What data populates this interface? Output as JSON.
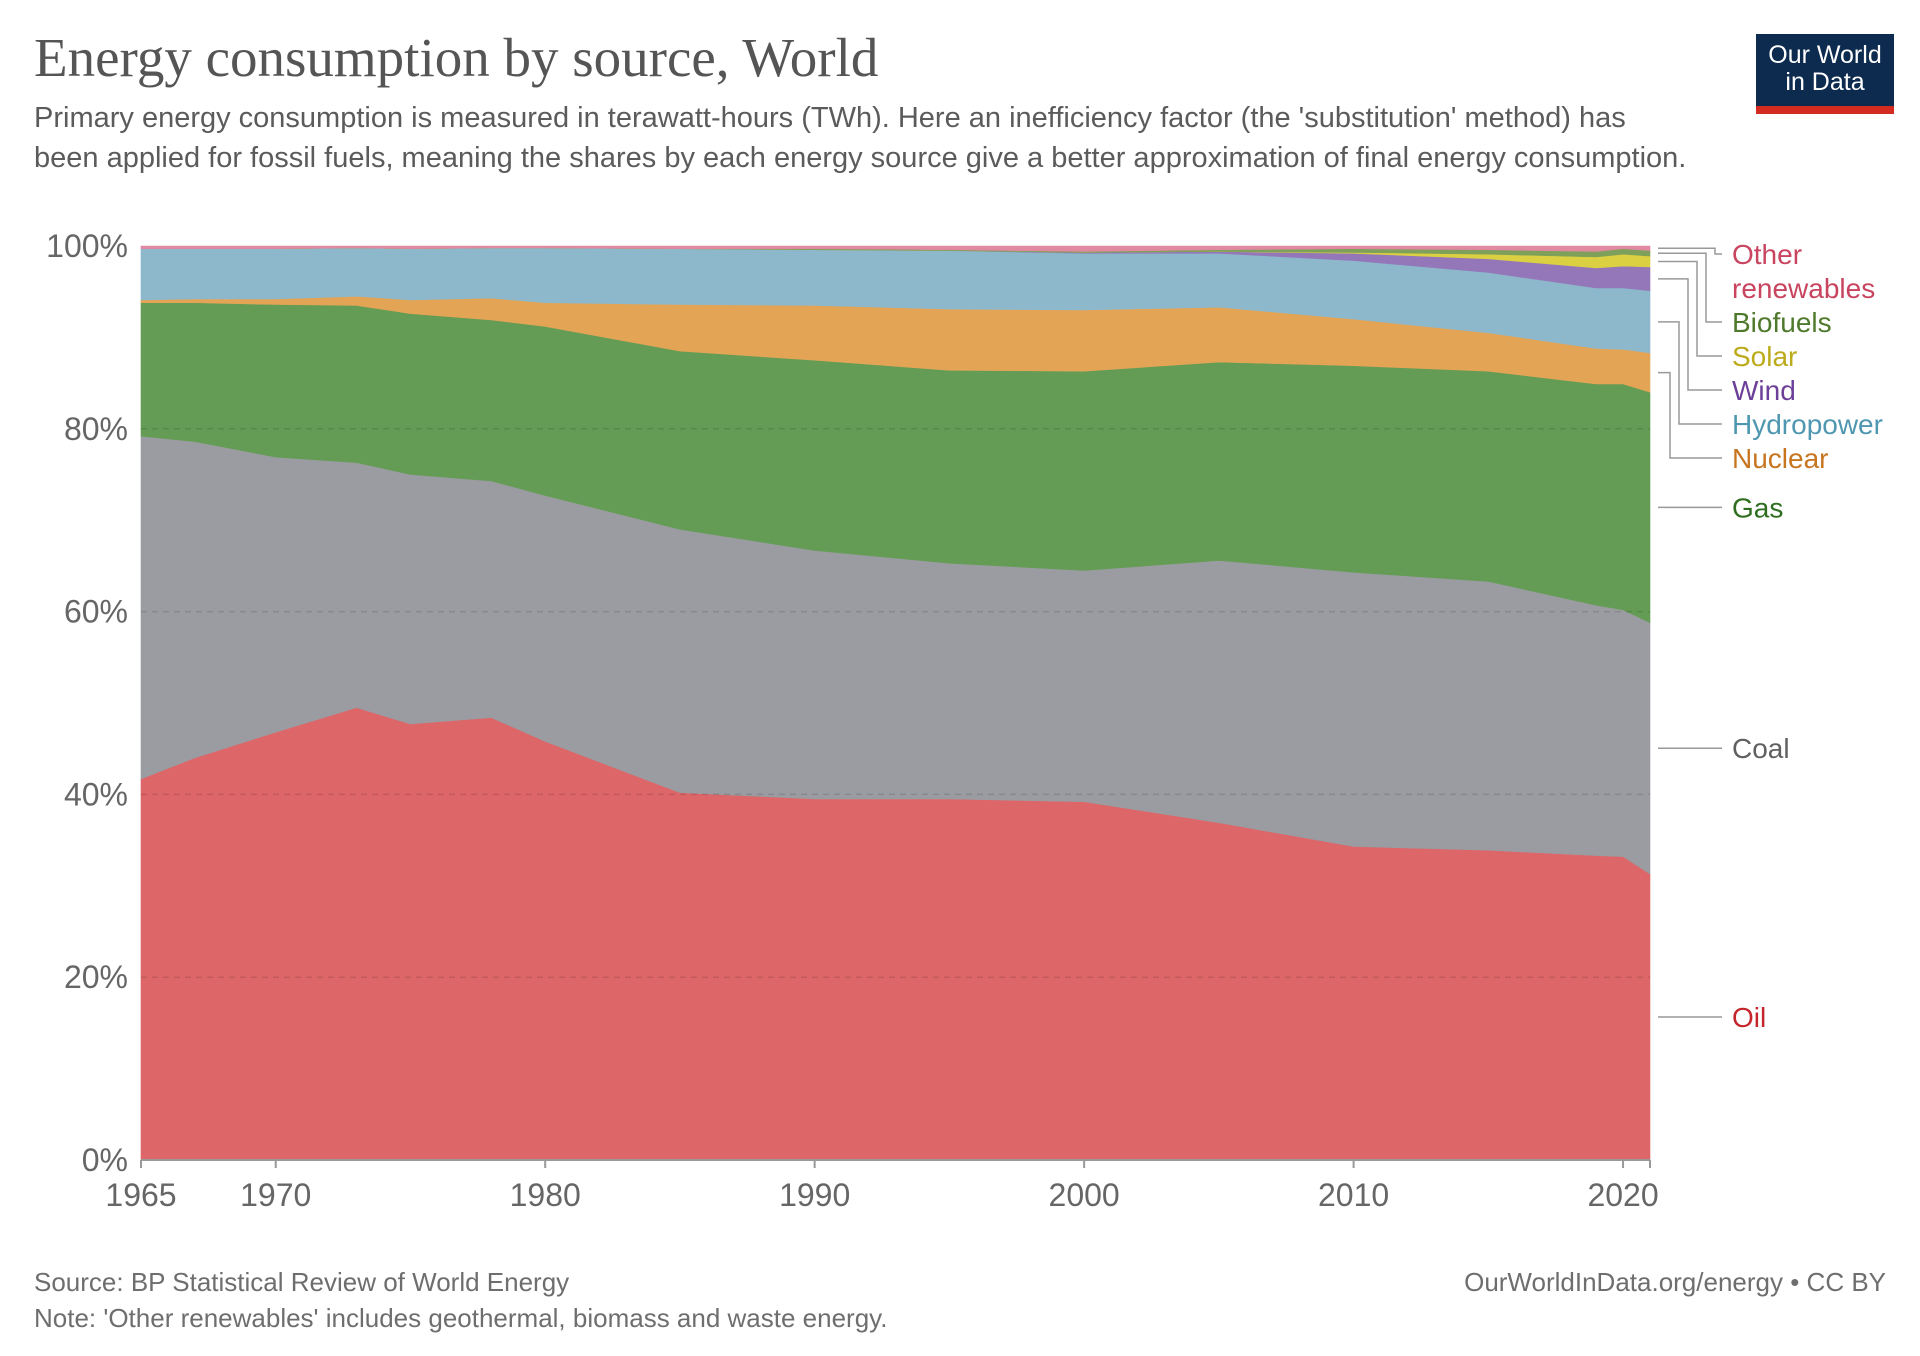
{
  "header": {
    "title": "Energy consumption by source, World",
    "subtitle": "Primary energy consumption is measured in terawatt-hours (TWh). Here an inefficiency factor (the 'substitution' method) has been applied for fossil fuels, meaning the shares by each energy source give a better approximation of final energy consumption.",
    "logo_line1": "Our World",
    "logo_line2": "in Data"
  },
  "footer": {
    "source": "Source: BP Statistical Review of World Energy",
    "note": "Note: 'Other renewables' includes geothermal, biomass and waste energy.",
    "credit": "OurWorldInData.org/energy • CC BY"
  },
  "colors": {
    "Oil": "#dd6669",
    "Coal": "#9a9ca1",
    "Gas": "#649c55",
    "Nuclear": "#e3a456",
    "Hydropower": "#8db7cb",
    "Wind": "#9477b9",
    "Solar": "#dbd041",
    "Biofuels": "#7ea05a",
    "Other renewables": "#e089a0"
  },
  "label_colors": {
    "Oil": "#c4262c",
    "Coal": "#606060",
    "Gas": "#2e6e1e",
    "Nuclear": "#c7751f",
    "Hydropower": "#4f97b0",
    "Wind": "#6d3f98",
    "Solar": "#bcab1b",
    "Biofuels": "#4f7a2c",
    "Other renewables": "#c8445f"
  },
  "chart_data": {
    "type": "area",
    "stacked": true,
    "title": "Energy consumption by source, World",
    "xlabel": "",
    "ylabel": "",
    "xlim": [
      1965,
      2021
    ],
    "ylim": [
      0,
      100
    ],
    "x_ticks": [
      "1965",
      "1970",
      "1980",
      "1990",
      "2000",
      "2010",
      "2020"
    ],
    "y_ticks": [
      "0%",
      "20%",
      "40%",
      "60%",
      "80%",
      "100%"
    ],
    "grid": "horizontal dashed",
    "legend_placement": "right",
    "legend_labels": [
      {
        "series": "Other renewables",
        "lines": [
          "Other",
          "renewables"
        ]
      },
      {
        "series": "Biofuels",
        "lines": [
          "Biofuels"
        ]
      },
      {
        "series": "Solar",
        "lines": [
          "Solar"
        ]
      },
      {
        "series": "Wind",
        "lines": [
          "Wind"
        ]
      },
      {
        "series": "Hydropower",
        "lines": [
          "Hydropower"
        ]
      },
      {
        "series": "Nuclear",
        "lines": [
          "Nuclear"
        ]
      },
      {
        "series": "Gas",
        "lines": [
          "Gas"
        ]
      },
      {
        "series": "Coal",
        "lines": [
          "Coal"
        ]
      },
      {
        "series": "Oil",
        "lines": [
          "Oil"
        ]
      }
    ],
    "x": [
      1965,
      1967,
      1970,
      1973,
      1975,
      1978,
      1980,
      1985,
      1990,
      1995,
      2000,
      2005,
      2010,
      2015,
      2019,
      2020,
      2021
    ],
    "series": [
      {
        "name": "Oil",
        "values": [
          41.7,
          44.0,
          46.8,
          49.5,
          47.7,
          48.4,
          45.8,
          40.2,
          39.5,
          39.5,
          39.2,
          36.9,
          34.3,
          33.9,
          33.3,
          33.2,
          31.3
        ]
      },
      {
        "name": "Coal",
        "values": [
          37.5,
          34.6,
          30.1,
          26.8,
          27.3,
          25.9,
          26.9,
          28.8,
          27.2,
          25.8,
          25.3,
          28.7,
          30.0,
          29.4,
          27.4,
          27.0,
          27.5
        ]
      },
      {
        "name": "Gas",
        "values": [
          14.6,
          15.2,
          16.7,
          17.2,
          17.6,
          17.6,
          18.5,
          19.5,
          20.8,
          21.1,
          21.8,
          21.7,
          22.6,
          23.0,
          24.2,
          24.7,
          25.2
        ]
      },
      {
        "name": "Nuclear",
        "values": [
          0.3,
          0.4,
          0.6,
          1.0,
          1.5,
          2.4,
          2.6,
          5.1,
          6.0,
          6.7,
          6.7,
          6.0,
          5.1,
          4.2,
          3.9,
          3.8,
          4.3
        ]
      },
      {
        "name": "Hydropower",
        "values": [
          5.6,
          5.5,
          5.5,
          5.3,
          5.6,
          5.5,
          6.0,
          6.1,
          6.1,
          6.4,
          6.2,
          5.9,
          6.4,
          6.6,
          6.6,
          6.7,
          6.8
        ]
      },
      {
        "name": "Wind",
        "values": [
          0.0,
          0.0,
          0.0,
          0.0,
          0.0,
          0.0,
          0.0,
          0.0,
          0.0,
          0.0,
          0.1,
          0.2,
          0.8,
          1.5,
          2.2,
          2.4,
          2.6
        ]
      },
      {
        "name": "Solar",
        "values": [
          0.0,
          0.0,
          0.0,
          0.0,
          0.0,
          0.0,
          0.0,
          0.0,
          0.0,
          0.0,
          0.0,
          0.0,
          0.1,
          0.5,
          1.2,
          1.3,
          1.2
        ]
      },
      {
        "name": "Biofuels",
        "values": [
          0.0,
          0.0,
          0.0,
          0.0,
          0.0,
          0.0,
          0.0,
          0.0,
          0.1,
          0.1,
          0.1,
          0.2,
          0.4,
          0.5,
          0.6,
          0.6,
          0.6
        ]
      },
      {
        "name": "Other renewables",
        "values": [
          0.3,
          0.3,
          0.3,
          0.2,
          0.3,
          0.2,
          0.2,
          0.3,
          0.3,
          0.4,
          0.6,
          0.4,
          0.3,
          0.4,
          0.6,
          0.3,
          0.5
        ]
      }
    ]
  }
}
